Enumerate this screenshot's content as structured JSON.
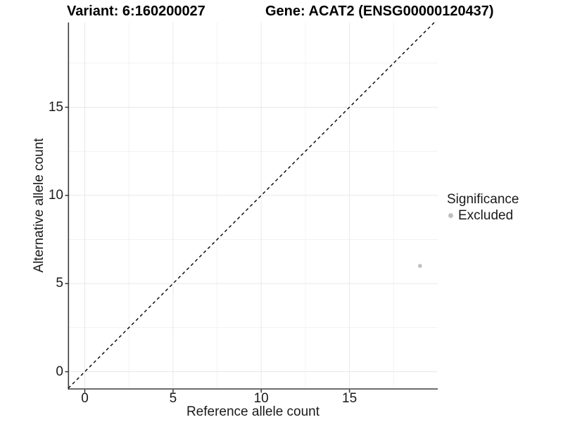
{
  "titles": {
    "variant": "Variant: 6:160200027",
    "gene": "Gene: ACAT2 (ENSG00000120437)"
  },
  "axes": {
    "x": {
      "label": "Reference allele count",
      "ticks": [
        "0",
        "5",
        "10",
        "15"
      ]
    },
    "y": {
      "label": "Alternative allele count",
      "ticks": [
        "0",
        "5",
        "10",
        "15"
      ]
    }
  },
  "legend": {
    "title": "Significance",
    "items": [
      {
        "label": "Excluded",
        "color": "#bfbfbf"
      }
    ]
  },
  "chart_data": {
    "type": "scatter",
    "title": "Variant: 6:160200027 | Gene: ACAT2 (ENSG00000120437)",
    "xlabel": "Reference allele count",
    "ylabel": "Alternative allele count",
    "xlim": [
      -1,
      20
    ],
    "ylim": [
      -1,
      20
    ],
    "x_ticks": [
      0,
      5,
      10,
      15
    ],
    "y_ticks": [
      0,
      5,
      10,
      15
    ],
    "grid": "major every 5, minor every 2.5, light gray on white",
    "legend_position": "right-center",
    "series": [
      {
        "name": "Excluded",
        "color": "#bfbfbf",
        "point_radius": 2.8,
        "points": [
          {
            "x": 19,
            "y": 6
          }
        ]
      }
    ],
    "reference_line": {
      "kind": "identity y=x",
      "style": "dashed",
      "color": "#000000"
    }
  },
  "colors": {
    "background": "#ffffff",
    "grid_major": "#e8e8e8",
    "grid_minor": "#f2f2f2",
    "axis_line": "#3c3c3c",
    "tick_mark": "#333333",
    "text": "#1a1a1a",
    "point": "#bfbfbf",
    "dashed_line": "#000000"
  }
}
